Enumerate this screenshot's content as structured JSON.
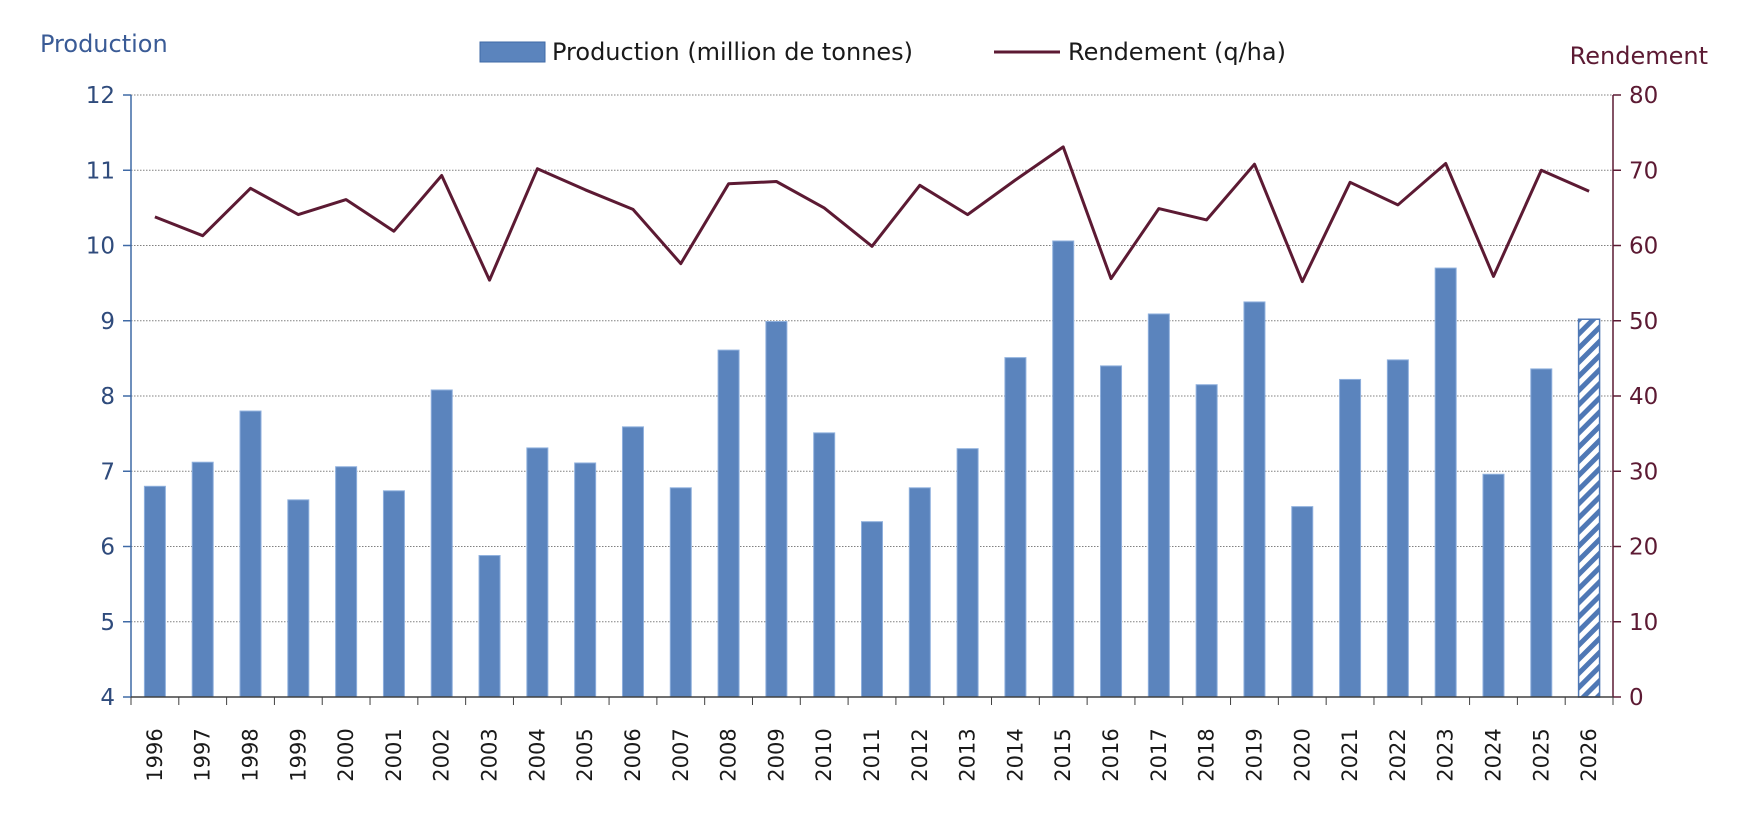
{
  "chart_data": {
    "type": "bar",
    "categories": [
      "1996",
      "1997",
      "1998",
      "1999",
      "2000",
      "2001",
      "2002",
      "2003",
      "2004",
      "2005",
      "2006",
      "2007",
      "2008",
      "2009",
      "2010",
      "2011",
      "2012",
      "2013",
      "2014",
      "2015",
      "2016",
      "2017",
      "2018",
      "2019",
      "2020",
      "2021",
      "2022",
      "2023",
      "2024",
      "2025",
      "2026"
    ],
    "series": [
      {
        "name": "Production (million de tonnes)",
        "type": "bar",
        "axis": "left",
        "color": "#5b84bd",
        "values": [
          6.8,
          7.12,
          7.8,
          6.62,
          7.06,
          6.74,
          8.08,
          5.88,
          7.31,
          7.11,
          7.59,
          6.78,
          8.61,
          8.99,
          7.51,
          6.33,
          6.78,
          7.3,
          8.51,
          10.06,
          8.4,
          9.09,
          8.15,
          9.25,
          6.53,
          8.22,
          8.48,
          9.7,
          6.96,
          8.36,
          9.02
        ],
        "hatched_categories": [
          "2026"
        ]
      },
      {
        "name": "Rendement (q/ha)",
        "type": "line",
        "axis": "right",
        "color": "#5c1a33",
        "values": [
          63.8,
          61.3,
          67.6,
          64.1,
          66.1,
          61.9,
          69.3,
          55.4,
          70.2,
          67.4,
          64.8,
          57.6,
          68.2,
          68.5,
          65.0,
          59.9,
          68.0,
          64.1,
          68.7,
          73.1,
          55.6,
          64.9,
          63.4,
          70.8,
          55.2,
          68.4,
          65.4,
          70.9,
          55.9,
          70.0,
          67.2
        ]
      }
    ],
    "yaxis_left": {
      "title": "Production",
      "min": 4,
      "max": 12,
      "ticks": [
        4,
        5,
        6,
        7,
        8,
        9,
        10,
        11,
        12
      ],
      "color": "#2f4b7c"
    },
    "yaxis_right": {
      "title": "Rendement",
      "min": 0,
      "max": 80,
      "ticks": [
        0,
        10,
        20,
        30,
        40,
        50,
        60,
        70,
        80
      ],
      "color": "#5c1a33"
    },
    "grid": true,
    "legend": {
      "placement": "top-center",
      "items": [
        "Production (million de tonnes)",
        "Rendement (q/ha)"
      ]
    }
  }
}
